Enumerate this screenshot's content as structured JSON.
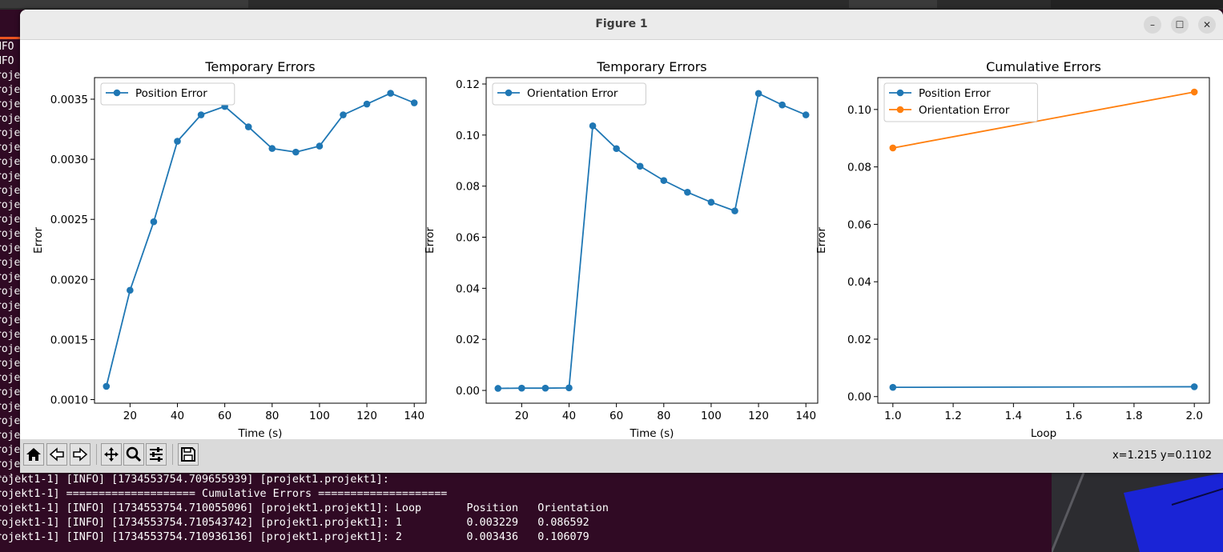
{
  "window": {
    "title": "Figure 1",
    "minimize_glyph": "–",
    "maximize_glyph": "☐",
    "close_glyph": "✕"
  },
  "toolbar": {
    "icons": [
      "home-icon",
      "back-icon",
      "forward-icon",
      "pan-icon",
      "zoom-icon",
      "configure-subplots-icon",
      "save-icon"
    ],
    "coords_readout": "x=1.215 y=0.1102"
  },
  "terminal": {
    "left_fragments": [
      "NFO",
      "NFO",
      "roje",
      "roje",
      "roje",
      "roje",
      "roje",
      "roje",
      "roje",
      "roje",
      "roje",
      "roje",
      "roje",
      "roje",
      "roje",
      "roje",
      "roje",
      "roje",
      "roje",
      "roje",
      "roje",
      "roje",
      "roje",
      "roje",
      "roje",
      "roje",
      "roje",
      "roje",
      "roje",
      "roje",
      "roje"
    ],
    "bottom_lines": [
      "rojekt1-1] [INFO] [1734553754.709655939] [projekt1.projekt1]:",
      "rojekt1-1] ==================== Cumulative Errors ====================",
      "rojekt1-1] [INFO] [1734553754.710055096] [projekt1.projekt1]: Loop       Position   Orientation",
      "rojekt1-1] [INFO] [1734553754.710543742] [projekt1.projekt1]: 1          0.003229   0.086592",
      "rojekt1-1] [INFO] [1734553754.710936136] [projekt1.projekt1]: 2          0.003436   0.106079"
    ]
  },
  "colors": {
    "series_blue": "#1f77b4",
    "series_orange": "#ff7f0e",
    "terminal_bg": "#300a24"
  },
  "chart_data": [
    {
      "type": "line",
      "title": "Temporary Errors",
      "xlabel": "Time (s)",
      "ylabel": "Error",
      "xlim": [
        5,
        145
      ],
      "ylim": [
        0.00097,
        0.00368
      ],
      "xticks": [
        20,
        40,
        60,
        80,
        100,
        120,
        140
      ],
      "yticks": [
        0.001,
        0.0015,
        0.002,
        0.0025,
        0.003,
        0.0035
      ],
      "ytick_labels": [
        "0.0010",
        "0.0015",
        "0.0020",
        "0.0025",
        "0.0030",
        "0.0035"
      ],
      "legend": "top-left",
      "grid": false,
      "series": [
        {
          "name": "Position Error",
          "color": "#1f77b4",
          "x": [
            10,
            20,
            30,
            40,
            50,
            60,
            70,
            80,
            90,
            100,
            110,
            120,
            130,
            140
          ],
          "y": [
            0.00111,
            0.00191,
            0.00248,
            0.00315,
            0.00337,
            0.00344,
            0.00327,
            0.00309,
            0.00306,
            0.00311,
            0.00337,
            0.00346,
            0.00355,
            0.00347
          ]
        }
      ]
    },
    {
      "type": "line",
      "title": "Temporary Errors",
      "xlabel": "Time (s)",
      "ylabel": "Error",
      "xlim": [
        5,
        145
      ],
      "ylim": [
        -0.005,
        0.1225
      ],
      "xticks": [
        20,
        40,
        60,
        80,
        100,
        120,
        140
      ],
      "yticks": [
        0.0,
        0.02,
        0.04,
        0.06,
        0.08,
        0.1,
        0.12
      ],
      "ytick_labels": [
        "0.00",
        "0.02",
        "0.04",
        "0.06",
        "0.08",
        "0.10",
        "0.12"
      ],
      "legend": "top-left",
      "grid": false,
      "series": [
        {
          "name": "Orientation Error",
          "color": "#1f77b4",
          "x": [
            10,
            20,
            30,
            40,
            50,
            60,
            70,
            80,
            90,
            100,
            110,
            120,
            130,
            140
          ],
          "y": [
            0.0008,
            0.0009,
            0.0009,
            0.001,
            0.1036,
            0.0947,
            0.0878,
            0.0822,
            0.0776,
            0.0737,
            0.0703,
            0.1163,
            0.1118,
            0.1079
          ]
        }
      ]
    },
    {
      "type": "line",
      "title": "Cumulative Errors",
      "xlabel": "Loop",
      "ylabel": "Error",
      "xlim": [
        0.95,
        2.05
      ],
      "ylim": [
        -0.0023,
        0.1111
      ],
      "xticks": [
        1.0,
        1.2,
        1.4,
        1.6,
        1.8,
        2.0
      ],
      "xtick_labels": [
        "1.0",
        "1.2",
        "1.4",
        "1.6",
        "1.8",
        "2.0"
      ],
      "yticks": [
        0.0,
        0.02,
        0.04,
        0.06,
        0.08,
        0.1
      ],
      "ytick_labels": [
        "0.00",
        "0.02",
        "0.04",
        "0.06",
        "0.08",
        "0.10"
      ],
      "legend": "top-left",
      "grid": false,
      "series": [
        {
          "name": "Position Error",
          "color": "#1f77b4",
          "x": [
            1.0,
            2.0
          ],
          "y": [
            0.003229,
            0.003436
          ]
        },
        {
          "name": "Orientation Error",
          "color": "#ff7f0e",
          "x": [
            1.0,
            2.0
          ],
          "y": [
            0.086592,
            0.106079
          ]
        }
      ]
    }
  ]
}
